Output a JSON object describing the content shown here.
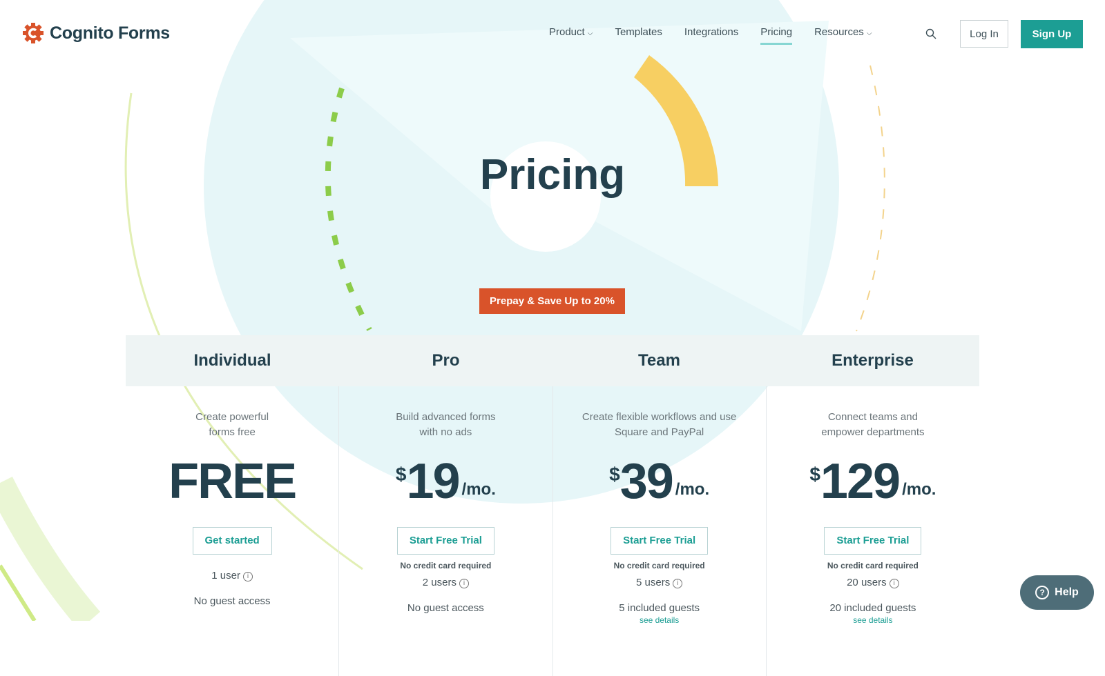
{
  "brand": {
    "name": "Cognito Forms",
    "logo_color": "#d9532a"
  },
  "nav": {
    "items": [
      {
        "label": "Product",
        "dropdown": true
      },
      {
        "label": "Templates"
      },
      {
        "label": "Integrations"
      },
      {
        "label": "Pricing",
        "active": true
      },
      {
        "label": "Resources",
        "dropdown": true
      }
    ],
    "search_icon": "search-icon",
    "login": "Log In",
    "signup": "Sign Up"
  },
  "page": {
    "title": "Pricing",
    "badge": "Prepay & Save Up to 20%"
  },
  "plans": [
    {
      "name": "Individual",
      "desc1": "Create powerful",
      "desc2": "forms free",
      "price": "FREE",
      "button": "Get started",
      "users": "1 user",
      "guests": "No guest access"
    },
    {
      "name": "Pro",
      "desc1": "Build advanced forms",
      "desc2": "with no ads",
      "currency": "$",
      "price": "19",
      "per": "/mo.",
      "button": "Start Free Trial",
      "note": "No credit card required",
      "users": "2 users",
      "guests": "No guest access"
    },
    {
      "name": "Team",
      "desc1": "Create flexible workflows and use",
      "desc2": "Square and PayPal",
      "currency": "$",
      "price": "39",
      "per": "/mo.",
      "button": "Start Free Trial",
      "note": "No credit card required",
      "users": "5 users",
      "guests": "5 included guests",
      "details": "see details"
    },
    {
      "name": "Enterprise",
      "desc1": "Connect teams and",
      "desc2": "empower departments",
      "currency": "$",
      "price": "129",
      "per": "/mo.",
      "button": "Start Free Trial",
      "note": "No credit card required",
      "users": "20 users",
      "guests": "20 included guests",
      "details": "see details"
    }
  ],
  "help": {
    "label": "Help"
  },
  "colors": {
    "accent": "#1c9e94",
    "badge": "#d9532a",
    "heading": "#23404d"
  }
}
